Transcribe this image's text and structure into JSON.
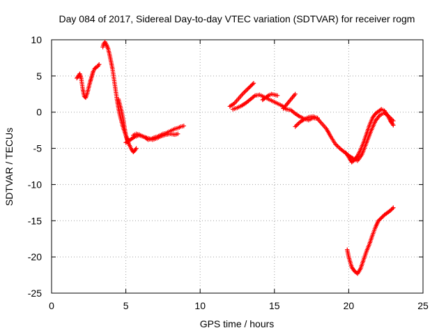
{
  "chart_data": {
    "type": "scatter",
    "title": "Day 084 of 2017, Sidereal Day-to-day VTEC variation (SDTVAR) for receiver rogm",
    "xlabel": "GPS time / hours",
    "ylabel": "SDTVAR / TECUs",
    "xlim": [
      0,
      25
    ],
    "ylim": [
      -25,
      10
    ],
    "xticks": [
      0,
      5,
      10,
      15,
      20,
      25
    ],
    "xtick_labels": [
      "0",
      "5",
      "10",
      "15",
      "20",
      "25"
    ],
    "yticks": [
      10,
      5,
      0,
      -5,
      -10,
      -15,
      -20,
      -25
    ],
    "ytick_labels": [
      "10",
      "5",
      "0",
      "-5",
      "-10",
      "-15",
      "-20",
      "-25"
    ],
    "grid": true,
    "marker": "plus",
    "color": "#ff0000",
    "series": [
      {
        "x": [
          1.7,
          1.8,
          1.9,
          2.0,
          2.1,
          2.2,
          2.3,
          2.4,
          2.5,
          2.6,
          2.7,
          2.8,
          2.9,
          3.0,
          3.1,
          3.2
        ],
        "values": [
          4.7,
          5.0,
          5.3,
          4.6,
          3.2,
          2.2,
          2.0,
          2.6,
          3.4,
          4.2,
          4.9,
          5.6,
          6.0,
          6.2,
          6.3,
          6.6
        ]
      },
      {
        "x": [
          3.45,
          3.5,
          3.6,
          3.7,
          3.8,
          3.9,
          4.0,
          4.1,
          4.2,
          4.3,
          4.4,
          4.5,
          4.6,
          4.7,
          4.8,
          4.9,
          5.0,
          5.1,
          5.2,
          5.3,
          5.4,
          5.5,
          5.6,
          5.7
        ],
        "values": [
          9.0,
          9.4,
          9.7,
          9.3,
          8.8,
          8.0,
          7.0,
          6.0,
          4.6,
          3.2,
          1.8,
          0.6,
          -0.4,
          -1.2,
          -2.0,
          -2.6,
          -3.2,
          -3.9,
          -4.4,
          -4.8,
          -5.2,
          -5.5,
          -5.3,
          -5.0
        ]
      },
      {
        "x": [
          4.5,
          4.6,
          4.7,
          4.8,
          4.9,
          5.0,
          5.1,
          5.2
        ],
        "values": [
          1.8,
          1.0,
          0.2,
          -0.8,
          -2.0,
          -3.2,
          -3.8,
          -4.0
        ]
      },
      {
        "x": [
          5.5,
          5.7,
          5.9,
          6.1,
          6.3,
          6.5,
          6.7,
          6.9,
          7.1,
          7.3,
          7.5,
          7.7,
          7.9,
          8.1,
          8.3,
          8.5,
          8.7,
          8.9
        ],
        "values": [
          -3.2,
          -3.0,
          -3.1,
          -3.3,
          -3.5,
          -3.8,
          -3.7,
          -3.5,
          -3.4,
          -3.2,
          -3.0,
          -2.9,
          -2.7,
          -2.5,
          -2.3,
          -2.2,
          -2.0,
          -1.9
        ]
      },
      {
        "x": [
          5.0,
          5.3,
          5.6,
          5.9,
          6.2,
          6.5,
          6.8,
          7.1,
          7.4,
          7.7,
          8.0,
          8.3,
          8.5
        ],
        "values": [
          -4.2,
          -3.8,
          -3.4,
          -3.2,
          -3.4,
          -3.6,
          -3.8,
          -3.6,
          -3.3,
          -3.1,
          -3.0,
          -3.1,
          -3.0
        ]
      },
      {
        "x": [
          12.0,
          12.3,
          12.6,
          12.9,
          13.2,
          13.4,
          13.6
        ],
        "values": [
          0.8,
          1.2,
          1.9,
          2.6,
          3.2,
          3.6,
          4.0
        ]
      },
      {
        "x": [
          12.2,
          12.5,
          12.8,
          13.1,
          13.4,
          13.7,
          14.0,
          14.3,
          14.6,
          14.9,
          15.2,
          15.5,
          15.8,
          16.1,
          16.4,
          16.7,
          17.0,
          17.3,
          17.6,
          17.9,
          18.2,
          18.5,
          18.8,
          19.1,
          19.4,
          19.7,
          20.0,
          20.3,
          20.6,
          20.9,
          21.2,
          21.5,
          21.8,
          22.1,
          22.4,
          22.7,
          23.0
        ],
        "values": [
          0.4,
          0.6,
          0.9,
          1.3,
          1.8,
          2.3,
          2.4,
          2.1,
          1.8,
          1.5,
          1.2,
          0.9,
          0.4,
          0.3,
          -0.2,
          -0.6,
          -0.9,
          -1.1,
          -0.8,
          -0.9,
          -1.6,
          -2.3,
          -3.4,
          -4.4,
          -5.0,
          -5.5,
          -6.0,
          -6.4,
          -6.7,
          -5.8,
          -4.2,
          -2.6,
          -1.2,
          -0.4,
          -0.1,
          -0.6,
          -1.2
        ]
      },
      {
        "x": [
          14.2,
          14.4,
          14.6,
          14.8,
          15.0,
          15.2
        ],
        "values": [
          1.7,
          2.0,
          2.3,
          2.5,
          2.4,
          2.3
        ]
      },
      {
        "x": [
          15.6,
          15.8,
          16.0,
          16.2,
          16.4
        ],
        "values": [
          0.5,
          1.0,
          1.5,
          2.0,
          2.5
        ]
      },
      {
        "x": [
          16.4,
          16.7,
          17.0,
          17.3,
          17.6,
          17.9
        ],
        "values": [
          -2.0,
          -1.4,
          -1.0,
          -0.7,
          -0.6,
          -0.8
        ]
      },
      {
        "x": [
          19.8,
          20.0,
          20.2,
          20.4,
          20.6,
          20.8,
          21.0,
          21.2,
          21.4,
          21.6,
          21.8,
          22.0,
          22.2,
          22.4,
          22.6,
          22.8,
          23.0
        ],
        "values": [
          -5.6,
          -6.2,
          -6.9,
          -6.6,
          -6.0,
          -5.2,
          -4.2,
          -3.0,
          -1.8,
          -0.8,
          -0.2,
          0.1,
          0.4,
          0.2,
          -0.4,
          -1.2,
          -1.8
        ]
      },
      {
        "x": [
          19.9,
          20.0,
          20.2,
          20.4,
          20.6,
          20.8,
          21.0,
          21.2,
          21.4,
          21.6,
          21.8,
          22.0,
          22.2,
          22.4,
          22.6,
          22.8,
          23.0
        ],
        "values": [
          -19.0,
          -20.0,
          -21.4,
          -22.0,
          -22.3,
          -21.6,
          -20.4,
          -19.2,
          -18.2,
          -17.0,
          -15.9,
          -15.0,
          -14.6,
          -14.2,
          -13.9,
          -13.6,
          -13.2
        ]
      }
    ]
  }
}
